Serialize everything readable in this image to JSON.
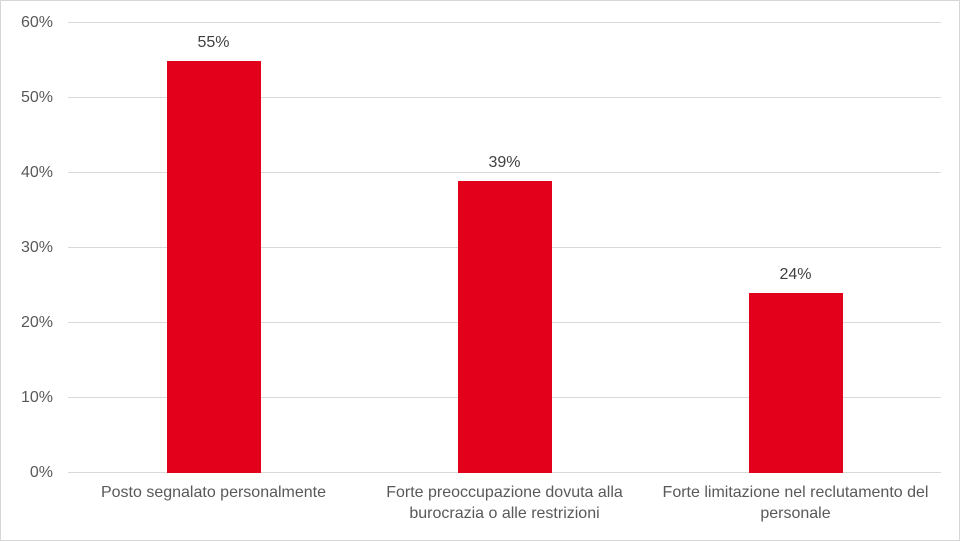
{
  "chart_data": {
    "type": "bar",
    "categories": [
      "Posto segnalato personalmente",
      "Forte preoccupazione dovuta alla burocrazia o alle restrizioni",
      "Forte limitazione nel reclutamento del personale"
    ],
    "values": [
      55,
      39,
      24
    ],
    "data_labels": [
      "55%",
      "39%",
      "24%"
    ],
    "title": "",
    "xlabel": "",
    "ylabel": "",
    "ylim": [
      0,
      60
    ],
    "yticks": [
      0,
      10,
      20,
      30,
      40,
      50,
      60
    ],
    "ytick_labels": [
      "0%",
      "10%",
      "20%",
      "30%",
      "40%",
      "50%",
      "60%"
    ],
    "grid": "horizontal",
    "legend": "none",
    "colors": {
      "bar": "#e2001a",
      "gridline": "#d9d9d9",
      "baseline": "#d9d9d9",
      "axis_text": "#595959",
      "category_text": "#595959",
      "data_label_text": "#404040",
      "background": "#ffffff",
      "border": "#d6d6d6"
    }
  }
}
